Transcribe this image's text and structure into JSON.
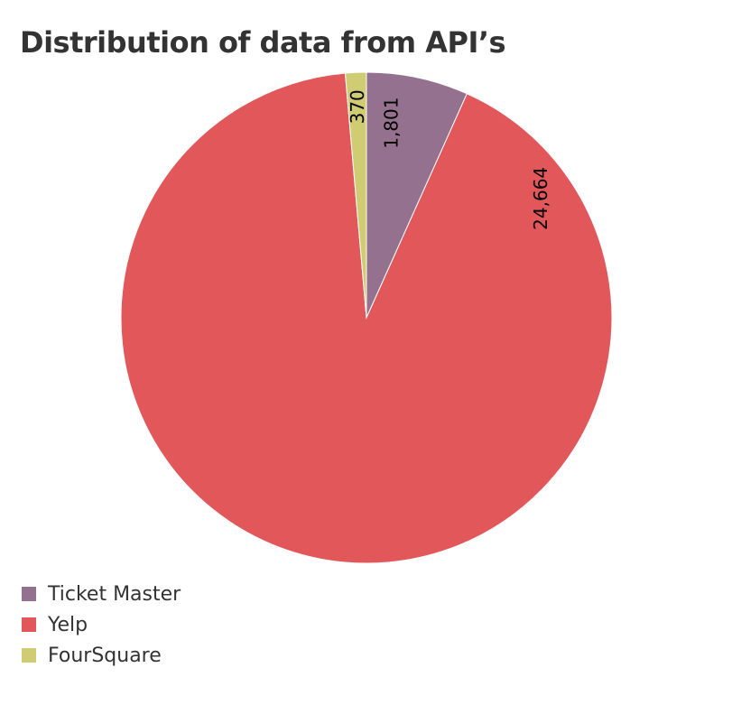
{
  "chart_data": {
    "type": "pie",
    "title": "Distribution of data from API’s",
    "slices": [
      {
        "name": "Ticket Master",
        "value": 1801,
        "label": "1,801",
        "color": "#94718f"
      },
      {
        "name": "Yelp",
        "value": 24664,
        "label": "24,664",
        "color": "#e1575a"
      },
      {
        "name": "FourSquare",
        "value": 370,
        "label": "370",
        "color": "#d0cc73"
      }
    ],
    "legend_position": "bottom-left",
    "label_orientation": "rotated-vertical"
  }
}
